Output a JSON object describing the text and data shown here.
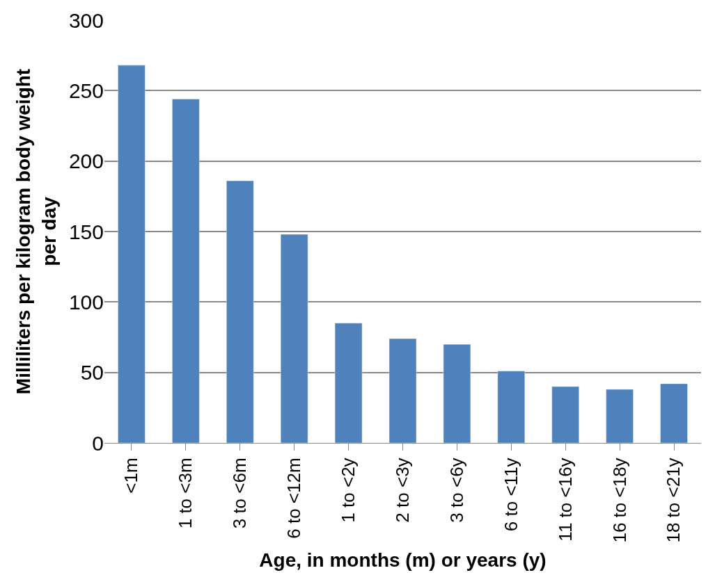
{
  "chart_data": {
    "type": "bar",
    "xlabel": "Age, in months (m) or years (y)",
    "ylabel": "Milliliters per kilogram body weight per day",
    "categories": [
      "<1m",
      "1 to <3m",
      "3 to <6m",
      "6 to <12m",
      "1 to <2y",
      "2 to <3y",
      "3 to <6y",
      "6 to <11y",
      "11 to <16y",
      "16 to <18y",
      "18 to <21y"
    ],
    "values": [
      268,
      244,
      186,
      148,
      85,
      74,
      70,
      51,
      40,
      38,
      42
    ],
    "color": "#4f81bd",
    "ylim": [
      0,
      300
    ],
    "yticks": [
      0,
      50,
      100,
      150,
      200,
      250,
      300
    ],
    "grid": "y"
  }
}
